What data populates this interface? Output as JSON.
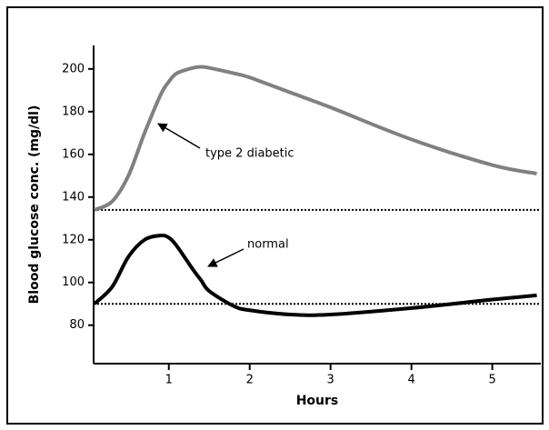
{
  "chart_data": {
    "type": "line",
    "xlabel": "Hours",
    "ylabel": "Blood glucose conc. (mg/dl)",
    "x": [
      0.08,
      0.3,
      0.5,
      0.7,
      0.9,
      1.0,
      1.1,
      1.3,
      1.4,
      1.5,
      1.8,
      2,
      2.5,
      3,
      4,
      5,
      5.55
    ],
    "series": [
      {
        "name": "type 2 diabetic",
        "color": "#808080",
        "values": [
          134,
          138,
          150,
          170,
          188,
          194,
          198,
          200.5,
          201,
          200.5,
          198,
          196,
          189,
          182,
          167,
          155,
          151
        ]
      },
      {
        "name": "normal",
        "color": "#000000",
        "values": [
          90,
          98,
          112,
          120,
          122,
          121,
          117,
          106,
          101,
          96,
          89,
          87,
          85,
          85,
          88,
          92,
          94
        ]
      }
    ],
    "reference_lines": [
      134,
      90
    ],
    "xlim": [
      0.07,
      5.6
    ],
    "xticks": [
      1,
      2,
      3,
      4,
      5
    ],
    "ylim": [
      62,
      211
    ],
    "yticks": [
      80,
      100,
      120,
      140,
      160,
      180,
      200
    ],
    "grid": false
  }
}
